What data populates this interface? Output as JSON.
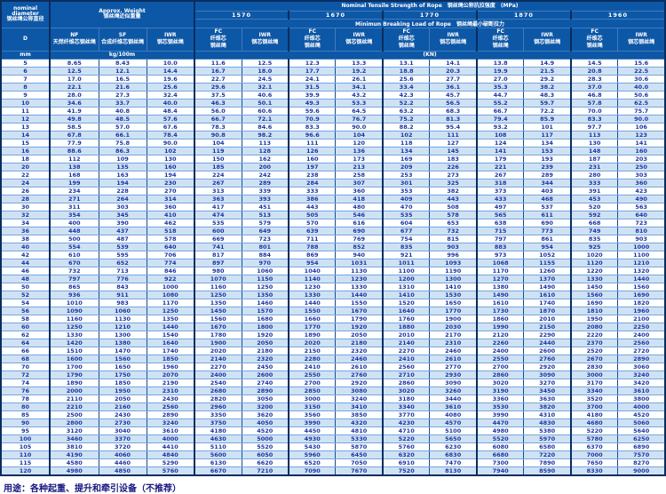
{
  "colors": {
    "header_bg": "#0d57a7",
    "header_line": "#3f7cba",
    "border_dark": "#0a2d5e",
    "grid_dark": "#1c4d8f",
    "grid_light": "#74a7da",
    "stripe": "#cfe2f5",
    "cell_text": "#1f33a0",
    "note_text": "#17177f"
  },
  "table": {
    "headers": {
      "nominal_diameter_en": "nominal diameter",
      "nominal_diameter_cn": "钢丝绳公称直径",
      "d_symbol": "D",
      "unit_mm": "mm",
      "approx_weight_en": "Approx. Weight",
      "approx_weight_cn": "钢丝绳近似重量",
      "unit_weight": "kg/100m",
      "tensile_title_en": "Nominal Tensile Strength of Rope",
      "tensile_title_cn": "钢丝绳公称抗拉强度",
      "tensile_unit": "(MPa)",
      "strength_grades": [
        "1570",
        "1670",
        "1770",
        "1870",
        "1960"
      ],
      "breaking_title_en": "Minimun Breaking Load of Rope",
      "breaking_title_cn": "钢丝绳最小破断拉力",
      "unit_kn": "(KN)",
      "weight_cols": [
        {
          "code": "NF",
          "cn": "天然纤维芯钢丝绳"
        },
        {
          "code": "SF",
          "cn": "合成纤维芯钢丝绳"
        },
        {
          "code": "IWR",
          "cn": "钢芯钢丝绳"
        }
      ],
      "grade_cols": [
        {
          "code": "FC",
          "lines": [
            "FC",
            "纤维芯",
            "钢丝绳"
          ]
        },
        {
          "code": "IWR",
          "lines": [
            "IWR",
            "钢芯钢丝绳"
          ]
        }
      ]
    },
    "rows": [
      [
        "5",
        "8.65",
        "8.43",
        "10.0",
        "11.6",
        "12.5",
        "12.3",
        "13.3",
        "13.1",
        "14.1",
        "13.8",
        "14.9",
        "14.5",
        "15.6"
      ],
      [
        "6",
        "12.5",
        "12.1",
        "14.4",
        "16.7",
        "18.0",
        "17.7",
        "19.2",
        "18.8",
        "20.3",
        "19.9",
        "21.5",
        "20.8",
        "22.5"
      ],
      [
        "7",
        "17.0",
        "16.5",
        "19.6",
        "22.7",
        "24.5",
        "24.1",
        "26.1",
        "25.6",
        "27.7",
        "27.0",
        "29.2",
        "28.3",
        "30.6"
      ],
      [
        "8",
        "22.1",
        "21.6",
        "25.6",
        "29.6",
        "32.1",
        "31.5",
        "34.1",
        "33.4",
        "36.1",
        "35.3",
        "38.2",
        "37.0",
        "40.0"
      ],
      [
        "9",
        "28.0",
        "27.3",
        "32.4",
        "37.5",
        "40.6",
        "39.9",
        "43.2",
        "42.3",
        "45.7",
        "44.7",
        "48.3",
        "46.8",
        "50.6"
      ],
      [
        "10",
        "34.6",
        "33.7",
        "40.0",
        "46.3",
        "50.1",
        "49.3",
        "53.3",
        "52.2",
        "56.5",
        "55.2",
        "59.7",
        "57.8",
        "62.5"
      ],
      [
        "11",
        "41.9",
        "40.8",
        "48.4",
        "56.0",
        "60.6",
        "59.6",
        "64.5",
        "63.2",
        "68.3",
        "66.7",
        "72.2",
        "70.0",
        "75.7"
      ],
      [
        "12",
        "49.8",
        "48.5",
        "57.6",
        "66.7",
        "72.1",
        "70.9",
        "76.7",
        "75.2",
        "81.3",
        "79.4",
        "85.9",
        "83.3",
        "90.0"
      ],
      [
        "13",
        "58.5",
        "57.0",
        "67.6",
        "78.3",
        "84.6",
        "83.3",
        "90.0",
        "88.2",
        "95.4",
        "93.2",
        "101",
        "97.7",
        "106"
      ],
      [
        "14",
        "67.8",
        "66.1",
        "78.4",
        "90.8",
        "98.2",
        "96.6",
        "104",
        "102",
        "111",
        "108",
        "117",
        "113",
        "123"
      ],
      [
        "15",
        "77.9",
        "75.8",
        "90.0",
        "104",
        "113",
        "111",
        "120",
        "118",
        "127",
        "124",
        "134",
        "130",
        "141"
      ],
      [
        "16",
        "88.6",
        "86.3",
        "102",
        "119",
        "128",
        "126",
        "136",
        "134",
        "145",
        "141",
        "153",
        "148",
        "160"
      ],
      [
        "18",
        "112",
        "109",
        "130",
        "150",
        "162",
        "160",
        "173",
        "169",
        "183",
        "179",
        "193",
        "187",
        "203"
      ],
      [
        "20",
        "138",
        "135",
        "160",
        "185",
        "200",
        "197",
        "213",
        "209",
        "226",
        "221",
        "239",
        "231",
        "250"
      ],
      [
        "22",
        "168",
        "163",
        "194",
        "224",
        "242",
        "238",
        "258",
        "253",
        "273",
        "267",
        "289",
        "280",
        "303"
      ],
      [
        "24",
        "199",
        "194",
        "230",
        "267",
        "289",
        "284",
        "307",
        "301",
        "325",
        "318",
        "344",
        "333",
        "360"
      ],
      [
        "26",
        "234",
        "228",
        "270",
        "313",
        "339",
        "333",
        "360",
        "353",
        "382",
        "373",
        "403",
        "391",
        "423"
      ],
      [
        "28",
        "271",
        "264",
        "314",
        "363",
        "393",
        "386",
        "418",
        "409",
        "443",
        "433",
        "468",
        "453",
        "490"
      ],
      [
        "30",
        "311",
        "303",
        "360",
        "417",
        "451",
        "443",
        "480",
        "470",
        "508",
        "497",
        "537",
        "520",
        "563"
      ],
      [
        "32",
        "354",
        "345",
        "410",
        "474",
        "513",
        "505",
        "546",
        "535",
        "578",
        "565",
        "611",
        "592",
        "640"
      ],
      [
        "34",
        "400",
        "390",
        "462",
        "535",
        "579",
        "570",
        "616",
        "604",
        "653",
        "638",
        "690",
        "668",
        "723"
      ],
      [
        "36",
        "448",
        "437",
        "518",
        "600",
        "649",
        "639",
        "690",
        "677",
        "732",
        "715",
        "773",
        "749",
        "810"
      ],
      [
        "38",
        "500",
        "487",
        "578",
        "669",
        "723",
        "711",
        "769",
        "754",
        "815",
        "797",
        "861",
        "835",
        "903"
      ],
      [
        "40",
        "554",
        "539",
        "640",
        "741",
        "801",
        "788",
        "852",
        "835",
        "903",
        "883",
        "954",
        "925",
        "1000"
      ],
      [
        "42",
        "610",
        "595",
        "706",
        "817",
        "884",
        "869",
        "940",
        "921",
        "996",
        "973",
        "1052",
        "1020",
        "1100"
      ],
      [
        "44",
        "670",
        "652",
        "774",
        "897",
        "970",
        "954",
        "1031",
        "1011",
        "1093",
        "1068",
        "1155",
        "1120",
        "1210"
      ],
      [
        "46",
        "732",
        "713",
        "846",
        "980",
        "1060",
        "1040",
        "1130",
        "1100",
        "1190",
        "1170",
        "1260",
        "1220",
        "1320"
      ],
      [
        "48",
        "797",
        "776",
        "922",
        "1070",
        "1150",
        "1140",
        "1230",
        "1200",
        "1300",
        "1270",
        "1370",
        "1330",
        "1440"
      ],
      [
        "50",
        "865",
        "843",
        "1000",
        "1160",
        "1250",
        "1230",
        "1330",
        "1310",
        "1410",
        "1380",
        "1490",
        "1450",
        "1560"
      ],
      [
        "52",
        "936",
        "911",
        "1080",
        "1250",
        "1350",
        "1330",
        "1440",
        "1410",
        "1530",
        "1490",
        "1610",
        "1560",
        "1690"
      ],
      [
        "54",
        "1010",
        "983",
        "1170",
        "1350",
        "1460",
        "1440",
        "1550",
        "1520",
        "1650",
        "1610",
        "1740",
        "1690",
        "1820"
      ],
      [
        "56",
        "1090",
        "1060",
        "1250",
        "1450",
        "1570",
        "1550",
        "1670",
        "1640",
        "1770",
        "1730",
        "1870",
        "1810",
        "1960"
      ],
      [
        "58",
        "1160",
        "1130",
        "1350",
        "1560",
        "1680",
        "1660",
        "1790",
        "1760",
        "1900",
        "1860",
        "2010",
        "1950",
        "2100"
      ],
      [
        "60",
        "1250",
        "1210",
        "1440",
        "1670",
        "1800",
        "1770",
        "1920",
        "1880",
        "2030",
        "1990",
        "2150",
        "2080",
        "2250"
      ],
      [
        "62",
        "1330",
        "1300",
        "1540",
        "1780",
        "1920",
        "1890",
        "2050",
        "2010",
        "2170",
        "2120",
        "2290",
        "2220",
        "2400"
      ],
      [
        "64",
        "1420",
        "1380",
        "1640",
        "1900",
        "2050",
        "2020",
        "2180",
        "2140",
        "2310",
        "2260",
        "2440",
        "2370",
        "2560"
      ],
      [
        "66",
        "1510",
        "1470",
        "1740",
        "2020",
        "2180",
        "2150",
        "2320",
        "2270",
        "2460",
        "2400",
        "2600",
        "2520",
        "2720"
      ],
      [
        "68",
        "1600",
        "1560",
        "1850",
        "2140",
        "2320",
        "2280",
        "2460",
        "2410",
        "2610",
        "2550",
        "2760",
        "2670",
        "2890"
      ],
      [
        "70",
        "1700",
        "1650",
        "1960",
        "2270",
        "2450",
        "2410",
        "2610",
        "2560",
        "2770",
        "2700",
        "2920",
        "2830",
        "3060"
      ],
      [
        "72",
        "1790",
        "1750",
        "2070",
        "2400",
        "2600",
        "2550",
        "2760",
        "2710",
        "2930",
        "2860",
        "3090",
        "3000",
        "3240"
      ],
      [
        "74",
        "1890",
        "1850",
        "2190",
        "2540",
        "2740",
        "2700",
        "2920",
        "2860",
        "3090",
        "3020",
        "3270",
        "3170",
        "3420"
      ],
      [
        "76",
        "2000",
        "1950",
        "2310",
        "2680",
        "2890",
        "2850",
        "3080",
        "3020",
        "3260",
        "3190",
        "3450",
        "3340",
        "3610"
      ],
      [
        "78",
        "2110",
        "2050",
        "2430",
        "2820",
        "3050",
        "3000",
        "3240",
        "3180",
        "3440",
        "3360",
        "3630",
        "3520",
        "3800"
      ],
      [
        "80",
        "2210",
        "2160",
        "2560",
        "2960",
        "3200",
        "3150",
        "3410",
        "3340",
        "3610",
        "3530",
        "3820",
        "3700",
        "4000"
      ],
      [
        "85",
        "2500",
        "2430",
        "2890",
        "3350",
        "3620",
        "3560",
        "3850",
        "3770",
        "4080",
        "3990",
        "4310",
        "4180",
        "4520"
      ],
      [
        "90",
        "2800",
        "2730",
        "3240",
        "3750",
        "4050",
        "3990",
        "4320",
        "4230",
        "4570",
        "4470",
        "4830",
        "4680",
        "5060"
      ],
      [
        "95",
        "3120",
        "3040",
        "3610",
        "4180",
        "4520",
        "4450",
        "4810",
        "4710",
        "5100",
        "4980",
        "5380",
        "5220",
        "5640"
      ],
      [
        "100",
        "3460",
        "3370",
        "4000",
        "4630",
        "5000",
        "4930",
        "5330",
        "5220",
        "5650",
        "5520",
        "5970",
        "5780",
        "6250"
      ],
      [
        "105",
        "3810",
        "3720",
        "4410",
        "5110",
        "5520",
        "5430",
        "5870",
        "5760",
        "6230",
        "6080",
        "6580",
        "6370",
        "6890"
      ],
      [
        "110",
        "4190",
        "4060",
        "4840",
        "5600",
        "6050",
        "5960",
        "6450",
        "6320",
        "6830",
        "6680",
        "7220",
        "7000",
        "7570"
      ],
      [
        "115",
        "4580",
        "4460",
        "5290",
        "6130",
        "6620",
        "6520",
        "7050",
        "6910",
        "7470",
        "7300",
        "7890",
        "7650",
        "8270"
      ],
      [
        "120",
        "4980",
        "4850",
        "5760",
        "6670",
        "7210",
        "7090",
        "7670",
        "7520",
        "8130",
        "7940",
        "8590",
        "8330",
        "9000"
      ]
    ]
  },
  "footer": {
    "note": "用途：各种起重、提升和牵引设备（不推荐）"
  }
}
